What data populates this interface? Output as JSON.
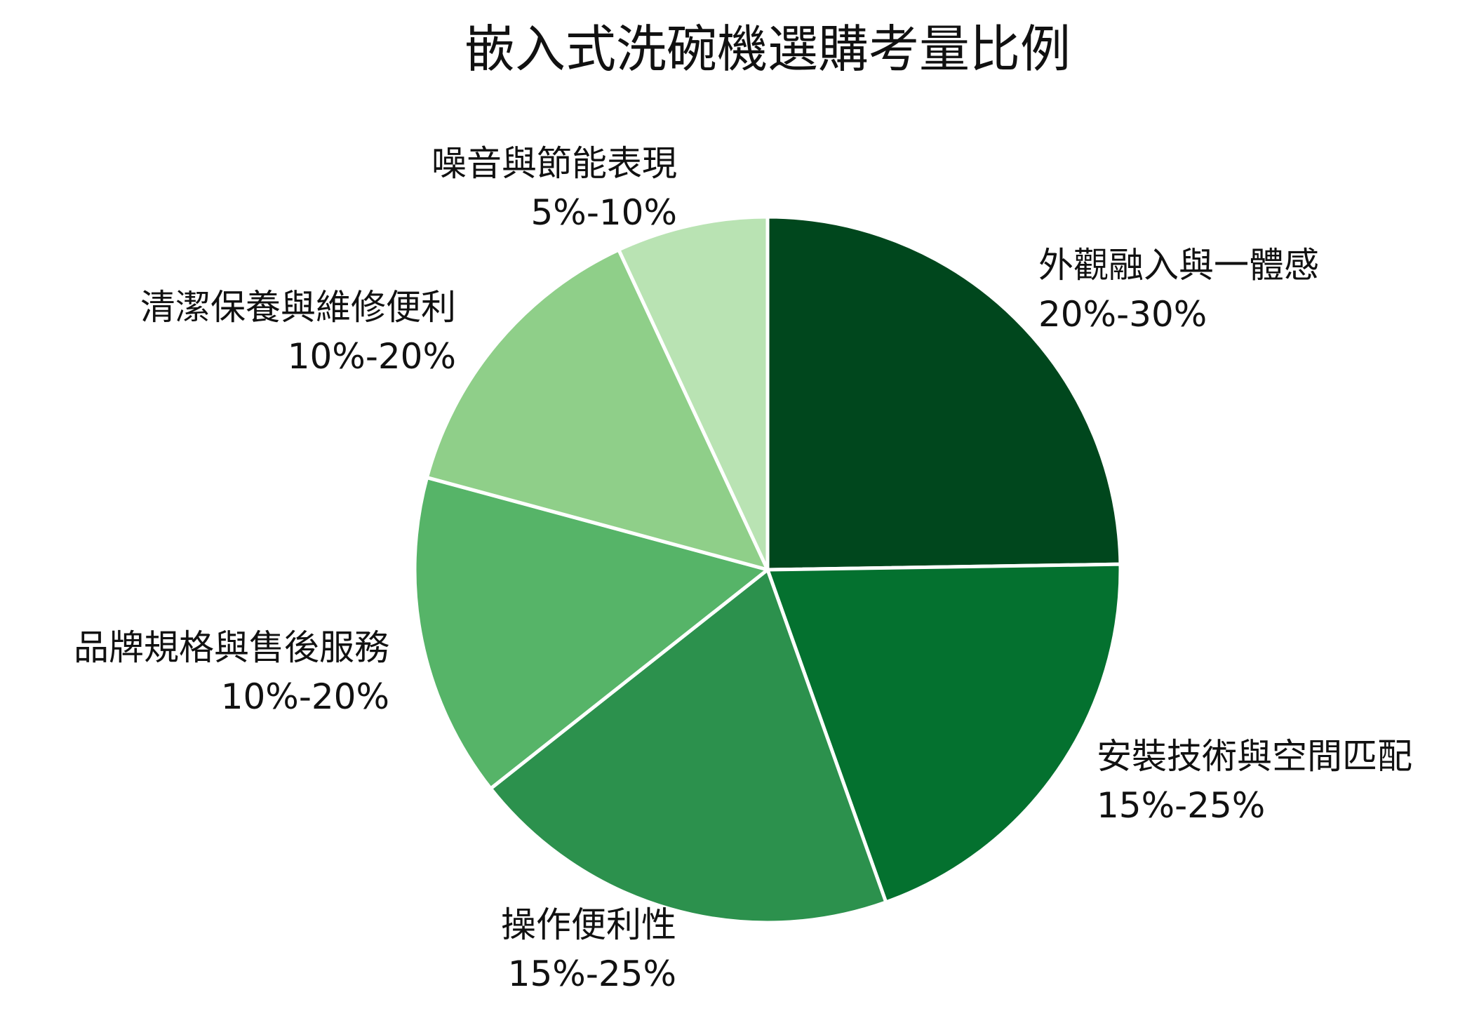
{
  "chart_data": {
    "type": "pie",
    "title": "嵌入式洗碗機選購考量比例",
    "slices": [
      {
        "label": "外觀融入與一體感",
        "range": "20%-30%",
        "value": 25,
        "color": "#00471d"
      },
      {
        "label": "安裝技術與空間匹配",
        "range": "15%-25%",
        "value": 20,
        "color": "#04712f"
      },
      {
        "label": "操作便利性",
        "range": "15%-25%",
        "value": 20,
        "color": "#2c914d"
      },
      {
        "label": "品牌規格與售後服務",
        "range": "10%-20%",
        "value": 15,
        "color": "#56b468"
      },
      {
        "label": "清潔保養與維修便利",
        "range": "10%-20%",
        "value": 14,
        "color": "#8fcf89"
      },
      {
        "label": "噪音與節能表現",
        "range": "5%-10%",
        "value": 7,
        "color": "#b9e3b3"
      }
    ]
  }
}
